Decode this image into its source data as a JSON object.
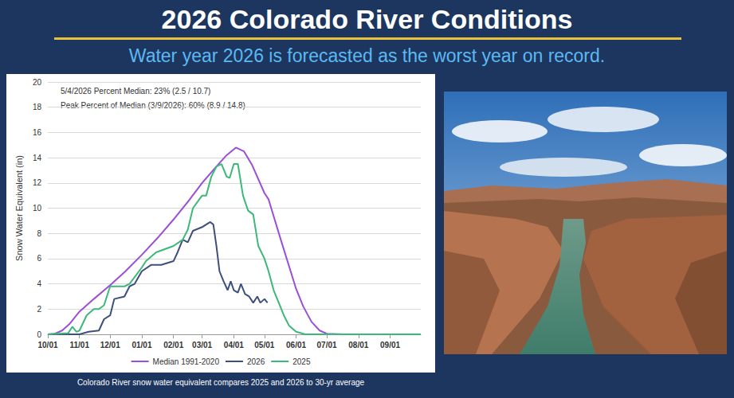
{
  "header": {
    "title": "2026 Colorado River Conditions",
    "subtitle": "Water year 2026 is forecasted as the worst year on record."
  },
  "chart_data": {
    "type": "line",
    "ylabel": "Snow Water Equivalent (in)",
    "annotations": [
      "5/4/2026 Percent Median: 23% (2.5 / 10.7)",
      "Peak Percent of Median (3/9/2026): 60% (8.9 / 14.8)"
    ],
    "xlim": [
      0,
      365
    ],
    "xticks": [
      {
        "value": 0,
        "label": "10/01"
      },
      {
        "value": 31,
        "label": "11/01"
      },
      {
        "value": 61,
        "label": "12/01"
      },
      {
        "value": 92,
        "label": "01/01"
      },
      {
        "value": 123,
        "label": "02/01"
      },
      {
        "value": 151,
        "label": "03/01"
      },
      {
        "value": 182,
        "label": "04/01"
      },
      {
        "value": 212,
        "label": "05/01"
      },
      {
        "value": 243,
        "label": "06/01"
      },
      {
        "value": 273,
        "label": "07/01"
      },
      {
        "value": 304,
        "label": "08/01"
      },
      {
        "value": 335,
        "label": "09/01"
      }
    ],
    "ylim": [
      0,
      20
    ],
    "yticks": [
      0,
      2,
      4,
      6,
      8,
      10,
      12,
      14,
      16,
      18,
      20
    ],
    "grid": true,
    "legend": "bottom",
    "series": [
      {
        "name": "Median 1991-2020",
        "color": "#9b4fd6",
        "x": [
          0,
          7,
          14,
          21,
          31,
          45,
          61,
          76,
          92,
          107,
          123,
          137,
          151,
          165,
          175,
          184,
          192,
          200,
          212,
          216,
          228,
          243,
          250,
          258,
          266,
          273,
          290,
          365
        ],
        "values": [
          0,
          0.05,
          0.3,
          0.8,
          1.8,
          2.8,
          3.9,
          5.0,
          6.3,
          7.6,
          9.1,
          10.5,
          12.0,
          13.3,
          14.2,
          14.8,
          14.5,
          13.4,
          11.2,
          10.7,
          7.5,
          3.6,
          2.2,
          1.0,
          0.3,
          0.05,
          0,
          0
        ]
      },
      {
        "name": "2026",
        "color": "#3d4f7c",
        "x": [
          0,
          31,
          40,
          50,
          55,
          61,
          65,
          75,
          80,
          85,
          92,
          101,
          111,
          123,
          127,
          132,
          137,
          142,
          151,
          159,
          162,
          165,
          168,
          172,
          176,
          179,
          182,
          186,
          189,
          193,
          197,
          201,
          205,
          208,
          212,
          215
        ],
        "values": [
          0,
          0,
          0.2,
          0.3,
          1.2,
          1.5,
          2.8,
          3.0,
          3.8,
          4.0,
          5.0,
          5.5,
          5.5,
          5.8,
          6.5,
          7.5,
          7.3,
          8.2,
          8.5,
          8.9,
          8.7,
          7.0,
          5.0,
          4.2,
          3.5,
          4.2,
          3.5,
          3.3,
          4.0,
          3.2,
          3.0,
          2.5,
          3.0,
          2.5,
          2.8,
          2.5
        ]
      },
      {
        "name": "2025",
        "color": "#3cb878",
        "x": [
          0,
          20,
          24,
          28,
          31,
          38,
          45,
          50,
          55,
          61,
          75,
          80,
          92,
          96,
          106,
          123,
          132,
          137,
          142,
          151,
          155,
          160,
          165,
          170,
          175,
          178,
          182,
          186,
          191,
          196,
          201,
          206,
          212,
          216,
          221,
          226,
          231,
          236,
          243,
          252,
          365
        ],
        "values": [
          0,
          0.1,
          0.6,
          0.2,
          0.3,
          1.5,
          2.0,
          2.0,
          2.3,
          3.8,
          3.8,
          4.0,
          5.3,
          5.8,
          6.5,
          7.0,
          7.5,
          8.3,
          10.0,
          11.0,
          11.0,
          12.5,
          13.3,
          13.5,
          12.5,
          12.4,
          13.5,
          13.5,
          11.0,
          9.8,
          9.5,
          7.0,
          6.0,
          5.0,
          3.5,
          2.5,
          1.5,
          0.7,
          0.2,
          0,
          0
        ]
      }
    ]
  },
  "caption": "Colorado River snow water equivalent compares 2025 and 2026 to 30-yr average"
}
